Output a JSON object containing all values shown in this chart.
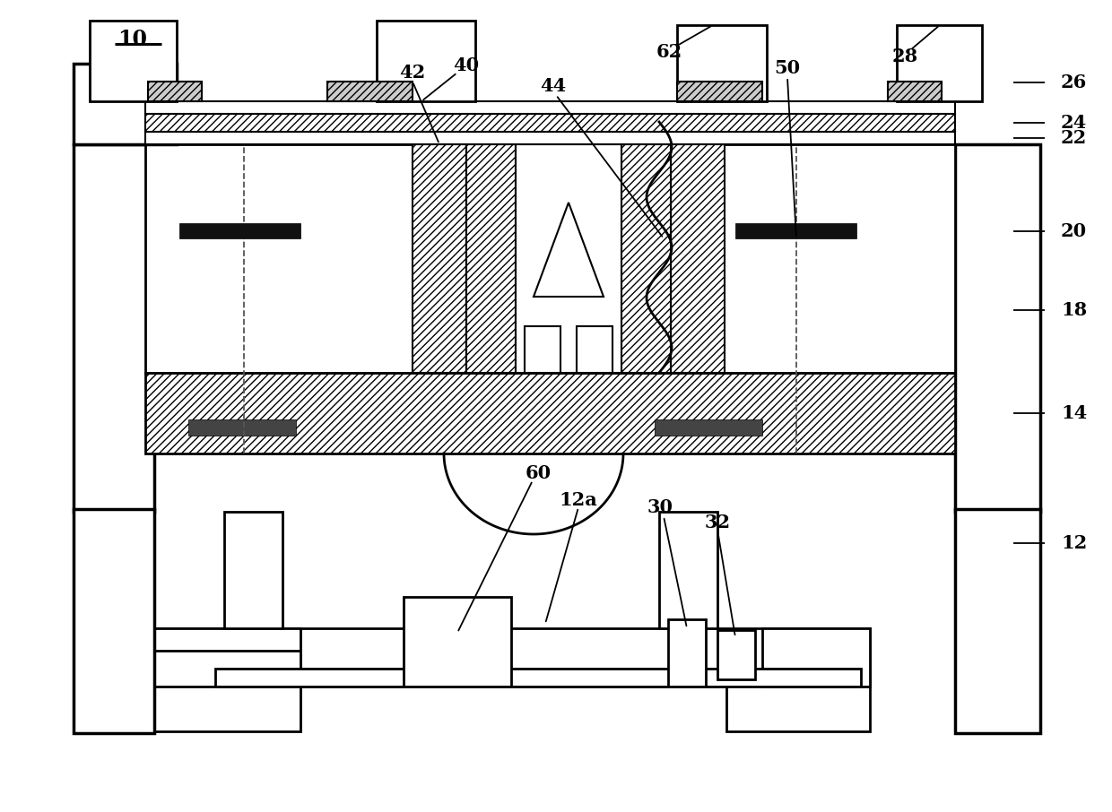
{
  "bg_color": "#ffffff",
  "line_color": "#000000",
  "figsize": [
    12.4,
    9.06
  ],
  "dpi": 100,
  "label_fontsize": 15
}
